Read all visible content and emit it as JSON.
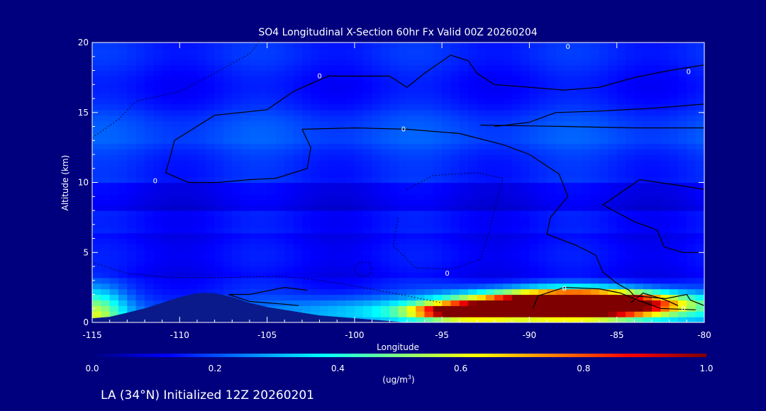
{
  "chart_data": {
    "type": "heatmap",
    "title": "SO4 Longitudinal X-Section 60hr  Fx Valid 00Z 20260204",
    "xlabel": "Longitude",
    "ylabel": "Altitude (km)",
    "xlim": [
      -115,
      -80
    ],
    "ylim": [
      0,
      20
    ],
    "x_ticks": [
      -115,
      -110,
      -105,
      -100,
      -95,
      -90,
      -85,
      -80
    ],
    "x_tick_labels": [
      "-115",
      "-110",
      "-105",
      "-100",
      "-95",
      "-90",
      "-85",
      "-80"
    ],
    "y_ticks": [
      0,
      5,
      10,
      15,
      20
    ],
    "y_tick_labels": [
      "0",
      "5",
      "10",
      "15",
      "20"
    ],
    "colorbar": {
      "min": 0.0,
      "max": 1.0,
      "ticks": [
        "0.0",
        "0.2",
        "0.4",
        "0.6",
        "0.8",
        "1.0"
      ],
      "unit_label": "(ug/m",
      "unit_superscript": "3",
      "unit_close": ")"
    },
    "contour_labels": [
      "0",
      "0",
      "0",
      "0",
      "0",
      "0",
      "0",
      "0"
    ],
    "grid": false,
    "legend": "colorbar-bottom",
    "footer": "LA (34°N) Initialized 12Z 20260201",
    "colors": {
      "background": "#00007f",
      "foreground": "#ffffff"
    },
    "terrain_km": [
      [
        -115,
        0.3
      ],
      [
        -114,
        0.4
      ],
      [
        -113,
        0.7
      ],
      [
        -112,
        1.0
      ],
      [
        -111,
        1.4
      ],
      [
        -110,
        1.8
      ],
      [
        -109,
        2.1
      ],
      [
        -108,
        2.1
      ],
      [
        -107,
        1.8
      ],
      [
        -106,
        1.4
      ],
      [
        -105,
        1.1
      ],
      [
        -104,
        0.9
      ],
      [
        -103,
        0.7
      ],
      [
        -102,
        0.5
      ],
      [
        -101,
        0.4
      ],
      [
        -100,
        0.3
      ],
      [
        -99,
        0.2
      ],
      [
        -98,
        0.1
      ],
      [
        -97,
        0.0
      ]
    ],
    "plumes": [
      {
        "lon": -87.5,
        "alt": 1.3,
        "slon": 5.5,
        "salt": 0.9,
        "amp": 1.6
      },
      {
        "lon": -93.5,
        "alt": 0.8,
        "slon": 3.0,
        "salt": 0.55,
        "amp": 0.9
      },
      {
        "lon": -115,
        "alt": 0.6,
        "slon": 1.8,
        "salt": 1.8,
        "amp": 0.35
      },
      {
        "lon": -100,
        "alt": 0.9,
        "slon": 4.0,
        "salt": 0.9,
        "amp": 0.12
      }
    ]
  }
}
